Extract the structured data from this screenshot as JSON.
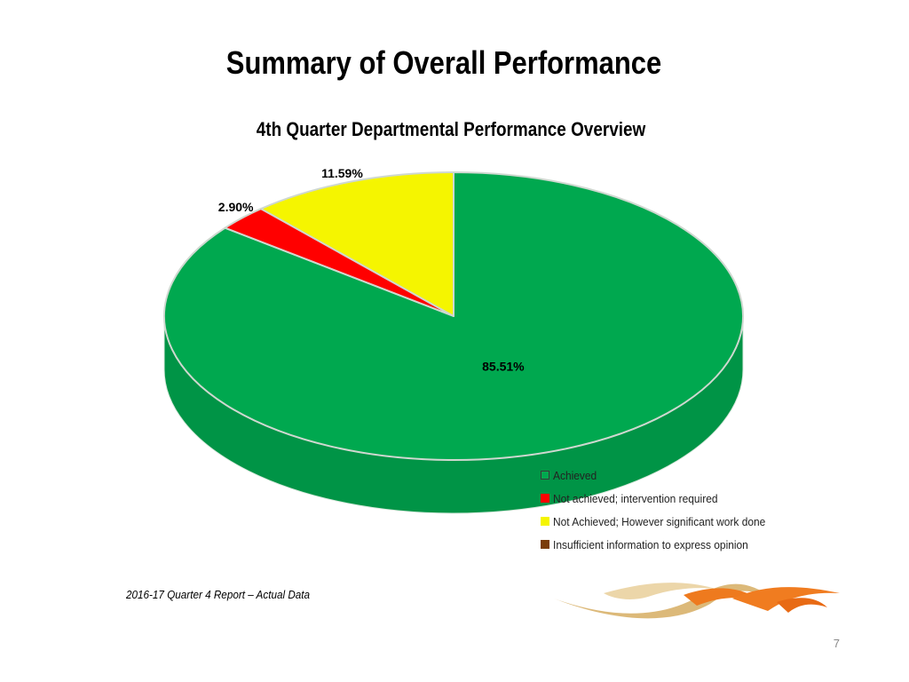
{
  "slide": {
    "title": "Summary of Overall Performance",
    "footer_note": "2016-17 Quarter 4 Report – Actual Data",
    "page_number": "7",
    "logo_icon": "swoosh-logo-icon"
  },
  "chart_data": {
    "type": "pie",
    "title": "4th Quarter Departmental Performance Overview",
    "categories": [
      "Achieved",
      "Not achieved; intervention required",
      "Not Achieved; However significant work done",
      "Insufficient information to express opinion"
    ],
    "values": [
      85.51,
      2.9,
      11.59,
      0
    ],
    "labels": [
      "85.51%",
      "2.90%",
      "11.59%",
      ""
    ],
    "colors": [
      "#00a84f",
      "#ff0000",
      "#f5f500",
      "#7a3d0a"
    ],
    "legend_position": "bottom-right",
    "three_d": true
  }
}
